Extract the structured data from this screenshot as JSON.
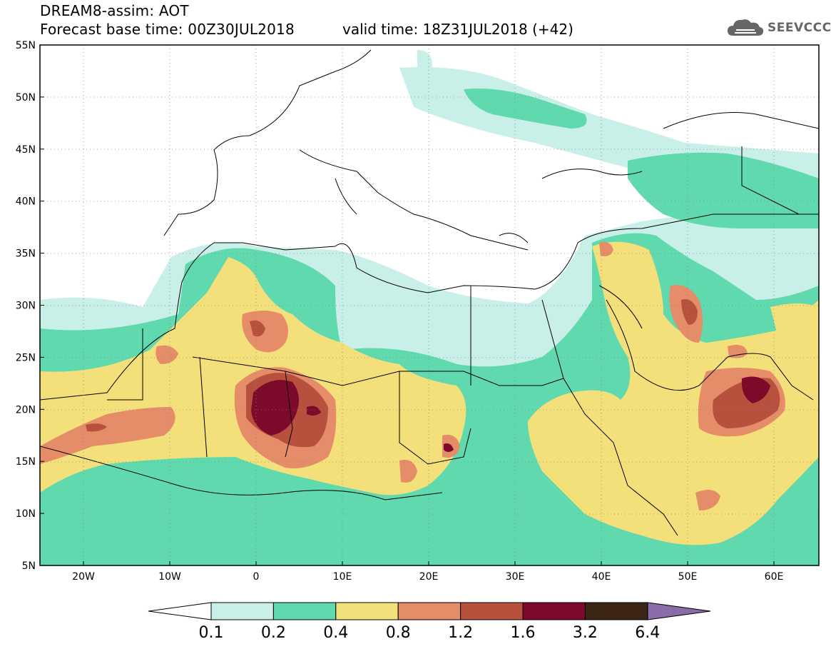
{
  "header": {
    "title": "DREAM8-assim: AOT",
    "base_time": "Forecast base time: 00Z30JUL2018",
    "valid_time": "valid time: 18Z31JUL2018 (+42)"
  },
  "logo": {
    "text": "SEEVCCC",
    "icon": "cloud-icon"
  },
  "map": {
    "lat_labels": [
      "55N",
      "50N",
      "45N",
      "40N",
      "35N",
      "30N",
      "25N",
      "20N",
      "15N",
      "10N",
      "5N"
    ],
    "lon_labels": [
      "20W",
      "10W",
      "0",
      "10E",
      "20E",
      "30E",
      "40E",
      "50E",
      "60E"
    ],
    "colors": {
      "c1": "#c9efe9",
      "c2": "#5fd9ad",
      "c3": "#f3e07a",
      "c4": "#e58c68",
      "c5": "#b8503e",
      "c6": "#7e0a2b",
      "c7": "#3b2515",
      "c8": "#8a6ca8"
    }
  },
  "colorbar": {
    "labels": [
      "0.1",
      "0.2",
      "0.4",
      "0.8",
      "1.2",
      "1.6",
      "3.2",
      "6.4"
    ],
    "colors": [
      "#c9efe9",
      "#5fd9ad",
      "#f3e07a",
      "#e58c68",
      "#b8503e",
      "#7e0a2b",
      "#3b2515"
    ],
    "under_color": "#ffffff",
    "over_color": "#8a6ca8"
  }
}
